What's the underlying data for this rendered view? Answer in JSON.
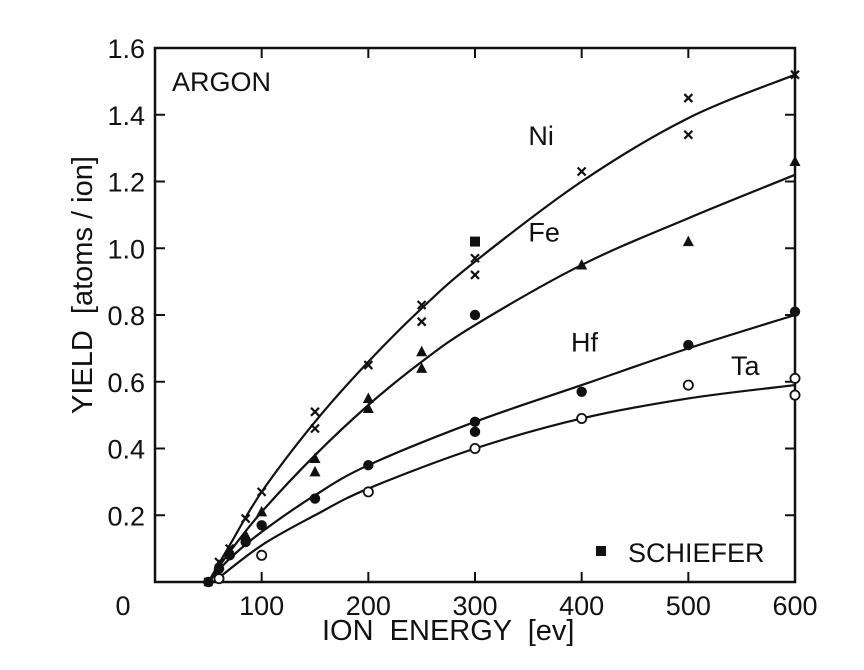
{
  "chart_data": {
    "type": "scatter",
    "title": "",
    "panel_label": "ARGON",
    "xlabel": "ION  ENERGY  [ev]",
    "ylabel": "YIELD  [atoms / ion]",
    "xlim": [
      0,
      600
    ],
    "ylim": [
      0,
      1.6
    ],
    "x_ticks": [
      0,
      100,
      200,
      300,
      400,
      500,
      600
    ],
    "x_tick_labels": [
      "0",
      "100",
      "200",
      "300",
      "400",
      "500",
      "600"
    ],
    "y_ticks": [
      0.2,
      0.4,
      0.6,
      0.8,
      1.0,
      1.2,
      1.4,
      1.6
    ],
    "y_tick_labels": [
      "0.2",
      "0.4",
      "0.6",
      "0.8",
      "1.0",
      "1.2",
      "1.4",
      "1.6"
    ],
    "grid": false,
    "legend": {
      "label": "SCHIEFER",
      "marker": "filled-square",
      "placement": "bottom-right"
    },
    "series": [
      {
        "name": "Ni",
        "marker": "x",
        "points": [
          [
            50,
            0.0
          ],
          [
            60,
            0.06
          ],
          [
            70,
            0.1
          ],
          [
            85,
            0.19
          ],
          [
            100,
            0.27
          ],
          [
            150,
            0.51
          ],
          [
            150,
            0.46
          ],
          [
            200,
            0.65
          ],
          [
            250,
            0.83
          ],
          [
            250,
            0.78
          ],
          [
            300,
            0.97
          ],
          [
            300,
            0.92
          ],
          [
            400,
            1.23
          ],
          [
            500,
            1.45
          ],
          [
            500,
            1.34
          ],
          [
            600,
            1.52
          ]
        ],
        "curve": [
          [
            50,
            0.0
          ],
          [
            70,
            0.11
          ],
          [
            100,
            0.27
          ],
          [
            150,
            0.48
          ],
          [
            200,
            0.66
          ],
          [
            250,
            0.82
          ],
          [
            300,
            0.96
          ],
          [
            400,
            1.2
          ],
          [
            500,
            1.39
          ],
          [
            600,
            1.52
          ]
        ]
      },
      {
        "name": "Fe",
        "marker": "filled-triangle",
        "points": [
          [
            60,
            0.05
          ],
          [
            70,
            0.09
          ],
          [
            85,
            0.14
          ],
          [
            100,
            0.21
          ],
          [
            150,
            0.37
          ],
          [
            150,
            0.33
          ],
          [
            200,
            0.55
          ],
          [
            200,
            0.52
          ],
          [
            250,
            0.69
          ],
          [
            250,
            0.64
          ],
          [
            400,
            0.95
          ],
          [
            500,
            1.02
          ],
          [
            600,
            1.26
          ]
        ],
        "curve": [
          [
            50,
            0.0
          ],
          [
            70,
            0.09
          ],
          [
            100,
            0.21
          ],
          [
            150,
            0.38
          ],
          [
            200,
            0.53
          ],
          [
            250,
            0.66
          ],
          [
            300,
            0.77
          ],
          [
            400,
            0.95
          ],
          [
            500,
            1.09
          ],
          [
            600,
            1.22
          ]
        ]
      },
      {
        "name": "Hf",
        "marker": "filled-circle",
        "points": [
          [
            50,
            0.0
          ],
          [
            60,
            0.04
          ],
          [
            70,
            0.08
          ],
          [
            85,
            0.12
          ],
          [
            100,
            0.17
          ],
          [
            150,
            0.25
          ],
          [
            200,
            0.35
          ],
          [
            300,
            0.8
          ],
          [
            300,
            0.48
          ],
          [
            300,
            0.45
          ],
          [
            400,
            0.57
          ],
          [
            500,
            0.71
          ],
          [
            600,
            0.81
          ]
        ],
        "curve": [
          [
            50,
            0.0
          ],
          [
            70,
            0.07
          ],
          [
            100,
            0.15
          ],
          [
            150,
            0.26
          ],
          [
            200,
            0.35
          ],
          [
            300,
            0.48
          ],
          [
            400,
            0.59
          ],
          [
            500,
            0.7
          ],
          [
            600,
            0.8
          ]
        ]
      },
      {
        "name": "Ta",
        "marker": "open-circle",
        "points": [
          [
            60,
            0.01
          ],
          [
            100,
            0.08
          ],
          [
            200,
            0.27
          ],
          [
            300,
            0.4
          ],
          [
            400,
            0.49
          ],
          [
            500,
            0.59
          ],
          [
            600,
            0.61
          ],
          [
            600,
            0.56
          ]
        ],
        "curve": [
          [
            55,
            0.0
          ],
          [
            100,
            0.11
          ],
          [
            150,
            0.2
          ],
          [
            200,
            0.28
          ],
          [
            300,
            0.4
          ],
          [
            400,
            0.49
          ],
          [
            500,
            0.55
          ],
          [
            600,
            0.59
          ]
        ]
      },
      {
        "name": "SCHIEFER",
        "marker": "filled-square",
        "points": [
          [
            300,
            1.02
          ]
        ]
      }
    ],
    "curve_labels": [
      {
        "text": "Ni",
        "x": 350,
        "y": 1.31
      },
      {
        "text": "Fe",
        "x": 350,
        "y": 1.02
      },
      {
        "text": "Hf",
        "x": 390,
        "y": 0.69
      },
      {
        "text": "Ta",
        "x": 540,
        "y": 0.62
      }
    ]
  }
}
